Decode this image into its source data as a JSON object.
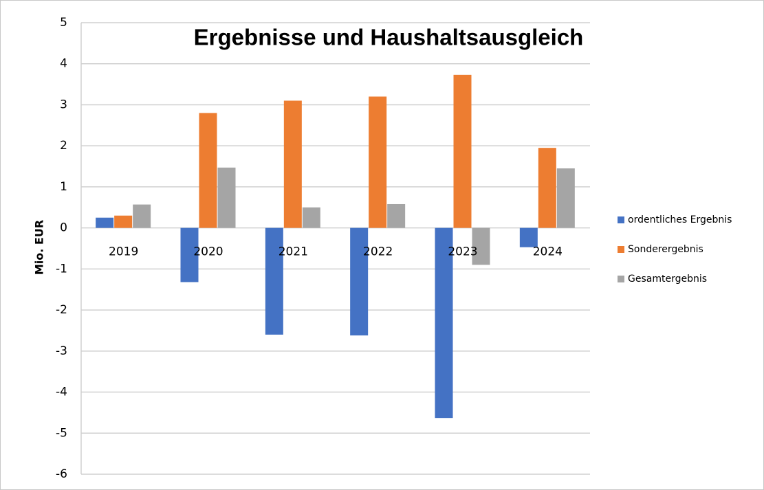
{
  "chart_data": {
    "type": "bar",
    "title": "Ergebnisse und Haushaltsausgleich",
    "y_label": "Mio. EUR",
    "categories": [
      "2019",
      "2020",
      "2021",
      "2022",
      "2023",
      "2024"
    ],
    "series": [
      {
        "name": "ordentliches Ergebnis",
        "color": "#4472c4",
        "values": [
          0.25,
          -1.32,
          -2.6,
          -2.62,
          -4.63,
          -0.47
        ]
      },
      {
        "name": "Sonderergebnis",
        "color": "#ed7d31",
        "values": [
          0.3,
          2.8,
          3.1,
          3.2,
          3.73,
          1.95
        ]
      },
      {
        "name": "Gesamtergebnis",
        "color": "#a5a5a5",
        "values": [
          0.57,
          1.47,
          0.5,
          0.58,
          -0.9,
          1.45
        ]
      }
    ],
    "ylim": [
      -6,
      5
    ],
    "yticks": [
      -6,
      -5,
      -4,
      -3,
      -2,
      -1,
      0,
      1,
      2,
      3,
      4,
      5
    ],
    "grid": true,
    "legend": "right"
  }
}
